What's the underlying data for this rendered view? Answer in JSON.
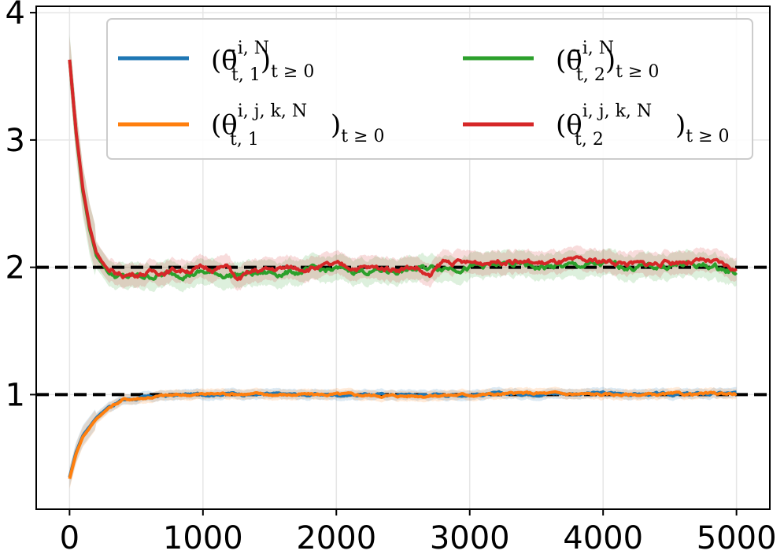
{
  "chart_data": {
    "type": "line",
    "title": "",
    "xlabel": "",
    "ylabel": "",
    "xlim": [
      -250,
      5250
    ],
    "ylim": [
      0.1,
      4.05
    ],
    "x_ticks": [
      0,
      1000,
      2000,
      3000,
      4000,
      5000
    ],
    "x_tick_labels": [
      "0",
      "1000",
      "2000",
      "3000",
      "4000",
      "5000"
    ],
    "y_ticks": [
      1,
      2,
      3,
      4
    ],
    "y_tick_labels": [
      "1",
      "2",
      "3",
      "4"
    ],
    "grid": true,
    "reference_lines": [
      {
        "y": 1,
        "style": "dashed",
        "color": "#000000"
      },
      {
        "y": 2,
        "style": "dashed",
        "color": "#000000"
      }
    ],
    "legend": {
      "position": "top-right",
      "columns": 2,
      "entries": [
        {
          "base": "(θ̄",
          "sup": "i, N",
          "sub": "t, 1",
          "tail": ")",
          "tail_sub": "t ≥ 0",
          "color": "#1f77b4"
        },
        {
          "base": "(θ̄",
          "sup": "i, N",
          "sub": "t, 2",
          "tail": ")",
          "tail_sub": "t ≥ 0",
          "color": "#2ca02c"
        },
        {
          "base": "(θ",
          "sup": "i, j, k, N",
          "sub": "t, 1",
          "tail": ")",
          "tail_sub": "t ≥ 0",
          "color": "#ff7f0e"
        },
        {
          "base": "(θ",
          "sup": "i, j, k, N",
          "sub": "t, 2",
          "tail": ")",
          "tail_sub": "t ≥ 0",
          "color": "#d62728"
        }
      ]
    },
    "series": [
      {
        "name": "theta_bar_1",
        "color": "#1f77b4",
        "x": [
          0,
          50,
          100,
          200,
          300,
          400,
          500,
          700,
          900,
          1200,
          1500,
          2000,
          2500,
          3000,
          3500,
          4000,
          4500,
          5000
        ],
        "values": [
          0.35,
          0.55,
          0.68,
          0.82,
          0.91,
          0.96,
          0.97,
          0.99,
          1.0,
          1.01,
          1.0,
          1.0,
          1.0,
          1.0,
          1.01,
          1.01,
          1.0,
          1.01
        ],
        "band": 0.04
      },
      {
        "name": "theta_ijk_1",
        "color": "#ff7f0e",
        "x": [
          0,
          50,
          100,
          200,
          300,
          400,
          500,
          700,
          900,
          1200,
          1500,
          2000,
          2500,
          3000,
          3500,
          4000,
          4500,
          5000
        ],
        "values": [
          0.34,
          0.54,
          0.67,
          0.81,
          0.9,
          0.96,
          0.97,
          0.99,
          1.0,
          1.01,
          1.0,
          1.0,
          0.99,
          1.0,
          1.01,
          1.0,
          1.0,
          1.01
        ],
        "band": 0.04
      },
      {
        "name": "theta_bar_2",
        "color": "#2ca02c",
        "x": [
          0,
          50,
          100,
          150,
          200,
          300,
          400,
          600,
          800,
          1000,
          1200,
          1400,
          1600,
          1800,
          2000,
          2300,
          2600,
          2800,
          3000,
          3300,
          3500,
          3800,
          4000,
          4300,
          4600,
          4800,
          5000
        ],
        "values": [
          3.63,
          3.05,
          2.6,
          2.3,
          2.1,
          1.95,
          1.92,
          1.93,
          1.95,
          1.96,
          1.94,
          1.95,
          1.96,
          1.97,
          1.98,
          1.97,
          1.98,
          2.01,
          2.0,
          2.02,
          2.0,
          2.01,
          2.02,
          2.0,
          2.02,
          2.01,
          1.96
        ],
        "band": 0.1
      },
      {
        "name": "theta_ijk_2",
        "color": "#d62728",
        "x": [
          0,
          50,
          100,
          150,
          200,
          300,
          400,
          600,
          800,
          1000,
          1200,
          1250,
          1400,
          1600,
          1800,
          2000,
          2300,
          2600,
          2700,
          2800,
          3000,
          3300,
          3500,
          3800,
          4000,
          4300,
          4600,
          4800,
          5000
        ],
        "values": [
          3.63,
          3.06,
          2.62,
          2.32,
          2.12,
          1.96,
          1.94,
          1.96,
          1.98,
          1.99,
          2.0,
          1.9,
          1.97,
          1.99,
          2.0,
          2.01,
          1.99,
          2.0,
          1.92,
          2.04,
          2.03,
          2.06,
          2.03,
          2.04,
          2.05,
          2.02,
          2.05,
          2.04,
          1.98
        ],
        "band": 0.09
      }
    ]
  }
}
